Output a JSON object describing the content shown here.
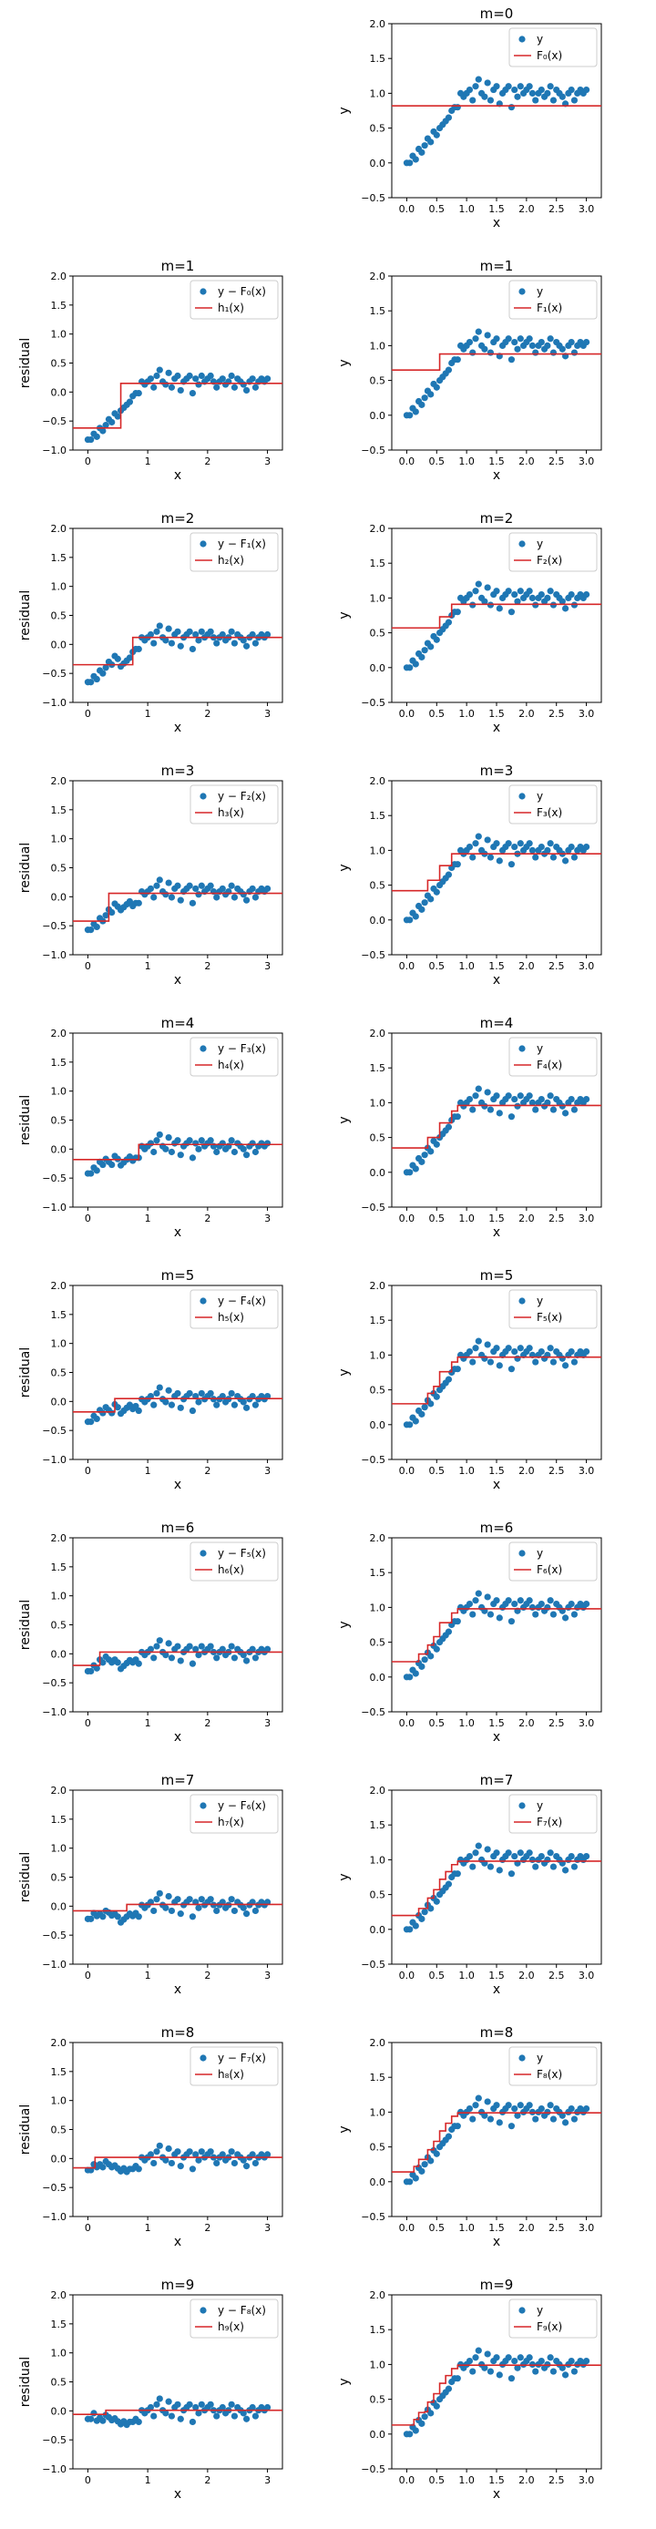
{
  "figure": {
    "colors": {
      "scatter": "#1f77b4",
      "step": "#d62728",
      "axes": "#000000",
      "legend_border": "#cccccc"
    },
    "scatter_x": [
      0.0,
      0.05,
      0.1,
      0.15,
      0.2,
      0.25,
      0.3,
      0.35,
      0.4,
      0.45,
      0.5,
      0.55,
      0.6,
      0.65,
      0.7,
      0.75,
      0.8,
      0.85,
      0.9,
      0.95,
      1.0,
      1.05,
      1.1,
      1.15,
      1.2,
      1.25,
      1.3,
      1.35,
      1.4,
      1.45,
      1.5,
      1.55,
      1.6,
      1.65,
      1.7,
      1.75,
      1.8,
      1.85,
      1.9,
      1.95,
      2.0,
      2.05,
      2.1,
      2.15,
      2.2,
      2.25,
      2.3,
      2.35,
      2.4,
      2.45,
      2.5,
      2.55,
      2.6,
      2.65,
      2.7,
      2.75,
      2.8,
      2.85,
      2.9,
      2.95,
      3.0
    ],
    "y_values": [
      0.0,
      0.0,
      0.1,
      0.05,
      0.2,
      0.15,
      0.25,
      0.35,
      0.3,
      0.45,
      0.4,
      0.5,
      0.55,
      0.6,
      0.65,
      0.75,
      0.8,
      0.8,
      1.0,
      0.95,
      1.0,
      1.05,
      0.9,
      1.1,
      1.2,
      1.0,
      0.95,
      1.15,
      0.9,
      1.05,
      1.1,
      0.85,
      1.0,
      1.05,
      1.1,
      0.8,
      1.05,
      0.95,
      1.1,
      1.0,
      1.05,
      1.1,
      1.0,
      0.9,
      1.0,
      1.05,
      0.95,
      1.0,
      1.1,
      0.9,
      1.05,
      1.0,
      0.95,
      0.85,
      1.0,
      1.05,
      0.9,
      1.0,
      1.05,
      1.0,
      1.05
    ]
  },
  "chart_data": {
    "type": "scatter",
    "layout": "10 rows × 2 columns",
    "top_panel": {
      "title": "m=0",
      "xlabel": "x",
      "ylabel": "y",
      "xlim": [
        -0.25,
        3.25
      ],
      "ylim": [
        -0.5,
        2.0
      ],
      "xticks": [
        "0.0",
        "0.5",
        "1.0",
        "1.5",
        "2.0",
        "2.5",
        "3.0"
      ],
      "yticks": [
        "−0.5",
        "0.0",
        "0.5",
        "1.0",
        "1.5",
        "2.0"
      ],
      "legend": [
        "y",
        "F₀(x)"
      ],
      "step": {
        "breaks": [],
        "values": [
          0.82
        ]
      }
    },
    "rows": [
      {
        "m": "m=1",
        "left": {
          "ylabel": "residual",
          "legend": [
            "y − F₀(x)",
            "h₁(x)"
          ],
          "step": {
            "breaks": [
              0.55
            ],
            "values": [
              -0.62,
              0.15
            ]
          }
        },
        "right": {
          "ylabel": "y",
          "legend": [
            "y",
            "F₁(x)"
          ],
          "step": {
            "breaks": [
              0.55
            ],
            "values": [
              0.65,
              0.88
            ]
          }
        }
      },
      {
        "m": "m=2",
        "left": {
          "ylabel": "residual",
          "legend": [
            "y − F₁(x)",
            "h₂(x)"
          ],
          "step": {
            "breaks": [
              0.75
            ],
            "values": [
              -0.35,
              0.12
            ]
          }
        },
        "right": {
          "ylabel": "y",
          "legend": [
            "y",
            "F₂(x)"
          ],
          "step": {
            "breaks": [
              0.55,
              0.75
            ],
            "values": [
              0.57,
              0.73,
              0.91
            ]
          }
        }
      },
      {
        "m": "m=3",
        "left": {
          "ylabel": "residual",
          "legend": [
            "y − F₂(x)",
            "h₃(x)"
          ],
          "step": {
            "breaks": [
              0.35
            ],
            "values": [
              -0.42,
              0.06
            ]
          }
        },
        "right": {
          "ylabel": "y",
          "legend": [
            "y",
            "F₃(x)"
          ],
          "step": {
            "breaks": [
              0.35,
              0.55,
              0.75
            ],
            "values": [
              0.42,
              0.57,
              0.78,
              0.95
            ]
          }
        }
      },
      {
        "m": "m=4",
        "left": {
          "ylabel": "residual",
          "legend": [
            "y − F₃(x)",
            "h₄(x)"
          ],
          "step": {
            "breaks": [
              0.85
            ],
            "values": [
              -0.18,
              0.08
            ]
          }
        },
        "right": {
          "ylabel": "y",
          "legend": [
            "y",
            "F₄(x)"
          ],
          "step": {
            "breaks": [
              0.35,
              0.55,
              0.75,
              0.85
            ],
            "values": [
              0.35,
              0.5,
              0.71,
              0.88,
              0.96
            ]
          }
        }
      },
      {
        "m": "m=5",
        "left": {
          "ylabel": "residual",
          "legend": [
            "y − F₄(x)",
            "h₅(x)"
          ],
          "step": {
            "breaks": [
              0.45
            ],
            "values": [
              -0.18,
              0.05
            ]
          }
        },
        "right": {
          "ylabel": "y",
          "legend": [
            "y",
            "F₅(x)"
          ],
          "step": {
            "breaks": [
              0.35,
              0.45,
              0.55,
              0.75,
              0.85
            ],
            "values": [
              0.3,
              0.45,
              0.55,
              0.76,
              0.9,
              0.97
            ]
          }
        }
      },
      {
        "m": "m=6",
        "left": {
          "ylabel": "residual",
          "legend": [
            "y − F₅(x)",
            "h₆(x)"
          ],
          "step": {
            "breaks": [
              0.2
            ],
            "values": [
              -0.2,
              0.03
            ]
          }
        },
        "right": {
          "ylabel": "y",
          "legend": [
            "y",
            "F₆(x)"
          ],
          "step": {
            "breaks": [
              0.2,
              0.35,
              0.45,
              0.55,
              0.75,
              0.85
            ],
            "values": [
              0.22,
              0.33,
              0.46,
              0.58,
              0.78,
              0.92,
              0.98
            ]
          }
        }
      },
      {
        "m": "m=7",
        "left": {
          "ylabel": "residual",
          "legend": [
            "y − F₆(x)",
            "h₇(x)"
          ],
          "step": {
            "breaks": [
              0.65
            ],
            "values": [
              -0.08,
              0.03
            ]
          }
        },
        "right": {
          "ylabel": "y",
          "legend": [
            "y",
            "F₇(x)"
          ],
          "step": {
            "breaks": [
              0.2,
              0.35,
              0.45,
              0.55,
              0.65,
              0.75,
              0.85
            ],
            "values": [
              0.2,
              0.3,
              0.45,
              0.57,
              0.72,
              0.83,
              0.93,
              0.98
            ]
          }
        }
      },
      {
        "m": "m=8",
        "left": {
          "ylabel": "residual",
          "legend": [
            "y − F₇(x)",
            "h₈(x)"
          ],
          "step": {
            "breaks": [
              0.12
            ],
            "values": [
              -0.16,
              0.02
            ]
          }
        },
        "right": {
          "ylabel": "y",
          "legend": [
            "y",
            "F₈(x)"
          ],
          "step": {
            "breaks": [
              0.12,
              0.2,
              0.35,
              0.45,
              0.55,
              0.65,
              0.75,
              0.85
            ],
            "values": [
              0.14,
              0.22,
              0.32,
              0.46,
              0.58,
              0.73,
              0.84,
              0.94,
              0.99
            ]
          }
        }
      },
      {
        "m": "m=9",
        "left": {
          "ylabel": "residual",
          "legend": [
            "y − F₈(x)",
            "h₉(x)"
          ],
          "step": {
            "breaks": [
              0.3
            ],
            "values": [
              -0.06,
              0.01
            ]
          }
        },
        "right": {
          "ylabel": "y",
          "legend": [
            "y",
            "F₉(x)"
          ],
          "step": {
            "breaks": [
              0.12,
              0.2,
              0.3,
              0.35,
              0.45,
              0.55,
              0.65,
              0.75,
              0.85
            ],
            "values": [
              0.13,
              0.21,
              0.31,
              0.32,
              0.46,
              0.58,
              0.73,
              0.84,
              0.94,
              0.99
            ]
          }
        }
      }
    ],
    "residual_panels": {
      "xlabel": "x",
      "xlim": [
        -0.25,
        3.25
      ],
      "ylim": [
        -1.0,
        2.0
      ],
      "xticks": [
        "0",
        "1",
        "2",
        "3"
      ],
      "yticks": [
        "−1.0",
        "−0.5",
        "0.0",
        "0.5",
        "1.0",
        "1.5",
        "2.0"
      ]
    },
    "fit_panels": {
      "xlabel": "x",
      "xlim": [
        -0.25,
        3.25
      ],
      "ylim": [
        -0.5,
        2.0
      ],
      "xticks": [
        "0.0",
        "0.5",
        "1.0",
        "1.5",
        "2.0",
        "2.5",
        "3.0"
      ],
      "yticks": [
        "−0.5",
        "0.0",
        "0.5",
        "1.0",
        "1.5",
        "2.0"
      ]
    }
  }
}
